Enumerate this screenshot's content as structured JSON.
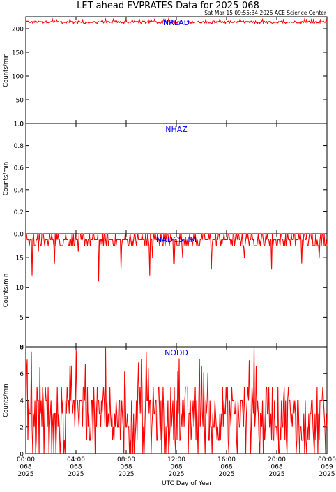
{
  "title": "LET ahead EVPRATES Data for 2025-068",
  "timestamp": "Sat Mar 15 09:55:34 2025 ACE Science Center",
  "xlabel": "UTC Day of Year",
  "colors": {
    "trace": "#ff0000",
    "label": "#0000ff",
    "axis": "#000000",
    "background": "#ffffff"
  },
  "chart_data": [
    {
      "type": "line",
      "series": [
        {
          "name": "NRLAD"
        }
      ],
      "ylabel": "Counts/min",
      "ylim": [
        0,
        225
      ],
      "yticks": [
        "0",
        "50",
        "100",
        "150",
        "200"
      ],
      "ytick_values": [
        0,
        50,
        100,
        150,
        200
      ],
      "signal": {
        "baseline": 216,
        "noise": [
          211,
          221
        ]
      }
    },
    {
      "type": "line",
      "series": [
        {
          "name": "NHAZ"
        }
      ],
      "ylabel": "Counts/min",
      "ylim": [
        0,
        1
      ],
      "yticks": [
        "0.0",
        "0.2",
        "0.4",
        "0.6",
        "0.8",
        "1.0"
      ],
      "ytick_values": [
        0,
        0.2,
        0.4,
        0.6,
        0.8,
        1.0
      ],
      "signal": {
        "baseline": 0,
        "noise": [
          0,
          0
        ]
      }
    },
    {
      "type": "line",
      "series": [
        {
          "name": "NADCSTIM"
        }
      ],
      "ylabel": "Counts/min",
      "ylim": [
        0,
        19
      ],
      "yticks": [
        "0",
        "5",
        "10",
        "15"
      ],
      "ytick_values": [
        0,
        5,
        10,
        15
      ],
      "signal": {
        "baseline": 18,
        "noise": [
          17,
          19
        ],
        "dips": [
          [
            0.5,
            12
          ],
          [
            1.0,
            16
          ],
          [
            2.3,
            14
          ],
          [
            4.2,
            16
          ],
          [
            5.8,
            11
          ],
          [
            7.6,
            13
          ],
          [
            9.9,
            12
          ],
          [
            10.1,
            15
          ],
          [
            11.8,
            14
          ],
          [
            12.5,
            15
          ],
          [
            14.8,
            13
          ],
          [
            17.4,
            15
          ],
          [
            19.6,
            13
          ],
          [
            22.0,
            14
          ],
          [
            23.4,
            15
          ]
        ]
      }
    },
    {
      "type": "line",
      "series": [
        {
          "name": "NODD"
        }
      ],
      "ylabel": "Counts/min",
      "ylim": [
        0,
        8
      ],
      "yticks": [
        "0",
        "2",
        "4",
        "6",
        "8"
      ],
      "ytick_values": [
        0,
        2,
        4,
        6,
        8
      ],
      "signal": {
        "baseline": 2.5,
        "noise": [
          0,
          8
        ]
      }
    }
  ],
  "x_axis": {
    "range_hours": [
      0,
      24
    ],
    "ticks": [
      {
        "hour": 0,
        "time": "00:00",
        "doy": "068",
        "year": "2025"
      },
      {
        "hour": 4,
        "time": "04:00",
        "doy": "068",
        "year": "2025"
      },
      {
        "hour": 8,
        "time": "08:00",
        "doy": "068",
        "year": "2025"
      },
      {
        "hour": 12,
        "time": "12:00",
        "doy": "068",
        "year": "2025"
      },
      {
        "hour": 16,
        "time": "16:00",
        "doy": "068",
        "year": "2025"
      },
      {
        "hour": 20,
        "time": "20:00",
        "doy": "068",
        "year": "2025"
      },
      {
        "hour": 24,
        "time": "00:00",
        "doy": "069",
        "year": "2025"
      }
    ]
  }
}
